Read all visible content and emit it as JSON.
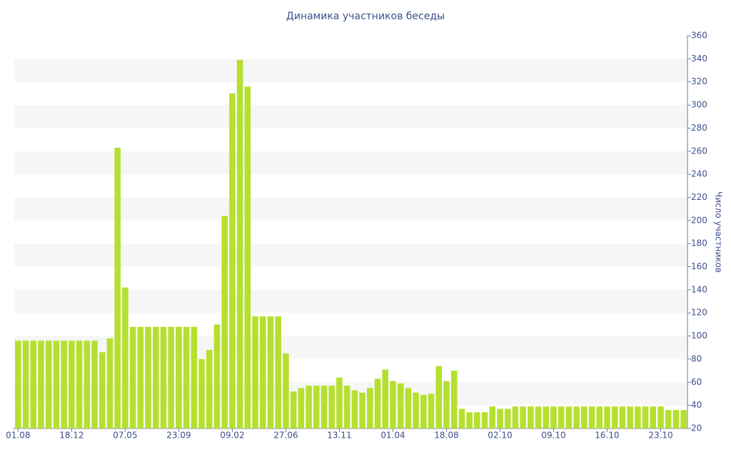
{
  "chart_data": {
    "type": "bar",
    "title": "Динамика участников беседы",
    "y_label": "Число участников",
    "categories": [
      "01.08",
      null,
      null,
      null,
      null,
      null,
      null,
      "18.12",
      null,
      null,
      null,
      null,
      null,
      null,
      "07.05",
      null,
      null,
      null,
      null,
      null,
      null,
      "23.09",
      null,
      null,
      null,
      null,
      null,
      null,
      "09.02",
      null,
      null,
      null,
      null,
      null,
      null,
      "27.06",
      null,
      null,
      null,
      null,
      null,
      null,
      "13.11",
      null,
      null,
      null,
      null,
      null,
      null,
      "01.04",
      null,
      null,
      null,
      null,
      null,
      null,
      "18.08",
      null,
      null,
      null,
      null,
      null,
      null,
      "02.10",
      null,
      null,
      null,
      null,
      null,
      null,
      "09.10",
      null,
      null,
      null,
      null,
      null,
      null,
      "16.10",
      null,
      null,
      null,
      null,
      null,
      null,
      "23.10",
      null,
      null,
      null
    ],
    "values": [
      96,
      96,
      96,
      96,
      96,
      96,
      96,
      96,
      96,
      96,
      96,
      86,
      98,
      263,
      142,
      108,
      108,
      108,
      108,
      108,
      108,
      108,
      108,
      108,
      80,
      88,
      110,
      204,
      310,
      339,
      316,
      117,
      117,
      117,
      117,
      85,
      52,
      55,
      57,
      57,
      57,
      57,
      64,
      57,
      53,
      51,
      55,
      63,
      71,
      61,
      59,
      55,
      51,
      49,
      50,
      74,
      61,
      70,
      37,
      34,
      34,
      34,
      39,
      37,
      37,
      39,
      39,
      39,
      39,
      39,
      39,
      39,
      39,
      39,
      39,
      39,
      39,
      39,
      39,
      39,
      39,
      39,
      39,
      39,
      39,
      36,
      36,
      36
    ],
    "color": "#b5e02f",
    "ylim": [
      20,
      360
    ],
    "yticks": [
      20,
      40,
      60,
      80,
      100,
      120,
      140,
      160,
      180,
      200,
      220,
      240,
      260,
      280,
      300,
      320,
      340,
      360
    ],
    "grid": true
  }
}
